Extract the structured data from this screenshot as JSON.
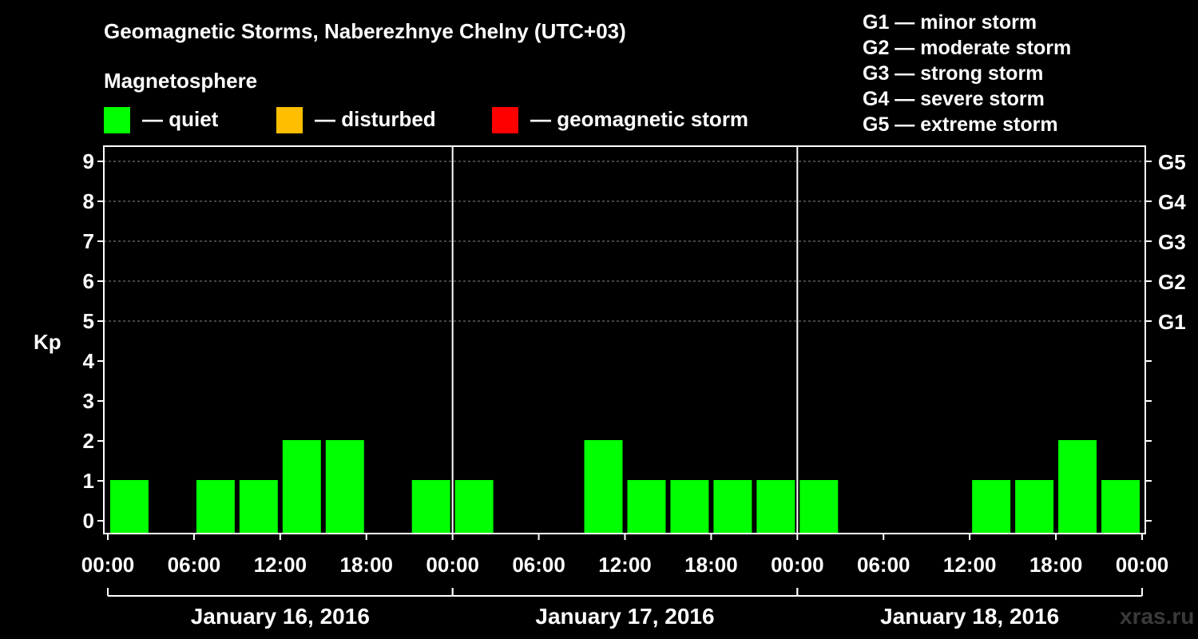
{
  "title": "Geomagnetic Storms, Naberezhnye Chelny (UTC+03)",
  "magnetosphere_label": "Magnetosphere",
  "legend": {
    "quiet": {
      "label": "— quiet",
      "color": "#00ff00"
    },
    "disturbed": {
      "label": "— disturbed",
      "color": "#ffbf00"
    },
    "storm": {
      "label": "— geomagnetic storm",
      "color": "#ff0000"
    }
  },
  "g_legend": [
    "G1 — minor storm",
    "G2 — moderate storm",
    "G3 — strong storm",
    "G4 — severe storm",
    "G5 — extreme storm"
  ],
  "watermark": "xras.ru",
  "chart_data": {
    "type": "bar",
    "title": "Geomagnetic Storms, Naberezhnye Chelny (UTC+03)",
    "ylabel": "Kp",
    "ylim": [
      0,
      9
    ],
    "yticks": [
      "0",
      "1",
      "2",
      "3",
      "4",
      "5",
      "6",
      "7",
      "8",
      "9"
    ],
    "right_ticks": [
      {
        "kp": 5,
        "label": "G1"
      },
      {
        "kp": 6,
        "label": "G2"
      },
      {
        "kp": 7,
        "label": "G3"
      },
      {
        "kp": 8,
        "label": "G4"
      },
      {
        "kp": 9,
        "label": "G5"
      }
    ],
    "grid": "dashed horizontal at Kp 5-9",
    "xtick_labels": [
      "00:00",
      "06:00",
      "12:00",
      "18:00",
      "00:00",
      "06:00",
      "12:00",
      "18:00",
      "00:00",
      "06:00",
      "12:00",
      "18:00",
      "00:00"
    ],
    "days": [
      "January 16, 2016",
      "January 17, 2016",
      "January 18, 2016"
    ],
    "interval_hours": 3,
    "bar_color": "#00ff00",
    "values": [
      1,
      0,
      1,
      1,
      2,
      2,
      0,
      1,
      1,
      0,
      0,
      2,
      1,
      1,
      1,
      1,
      1,
      0,
      0,
      0,
      1,
      1,
      2,
      1
    ]
  }
}
